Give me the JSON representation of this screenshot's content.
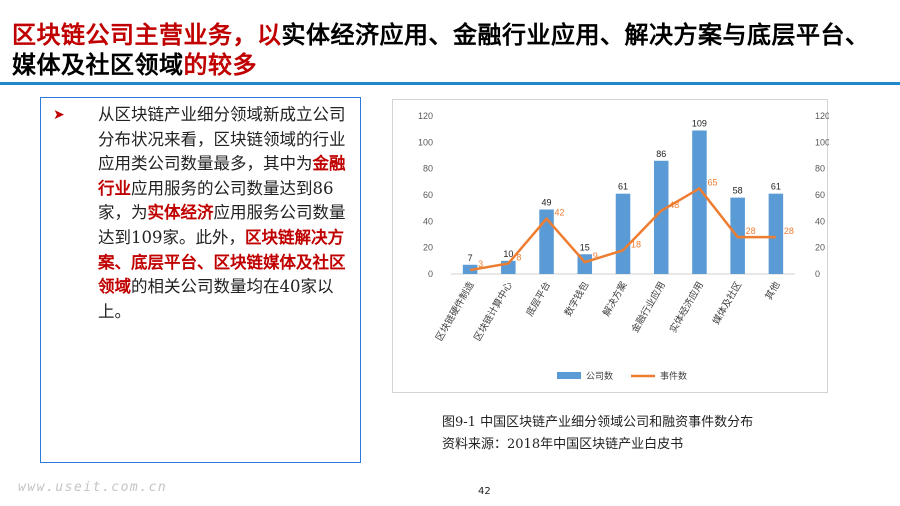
{
  "slide": {
    "title_red_1": "区块链公司主营业务，以",
    "title_black": "实体经济应用、金融行业应用、解决方案与底层平台、媒体及社区领域",
    "title_red_2": "的较多",
    "bullet_icon": "arrow-bullet-icon",
    "body": {
      "t1": "从区块链产业细分领域新成立公司分布状况来看，区块链领域的行业应用类公司数量最多，其中为",
      "h1": "金融行业",
      "t2": "应用服务的公司数量达到86家，为",
      "h2": "实体经济",
      "t3": "应用服务公司数量达到109家。此外，",
      "h3": "区块链解决方案、底层平台、区块链媒体及社区领域",
      "t4": "的相关公司数量均在40家以上。"
    },
    "caption_figure": "图9-1 中国区块链产业细分领域公司和融资事件数分布",
    "caption_source": "资料来源：2018年中国区块链产业白皮书",
    "watermark": "www.useit.com.cn",
    "page_number": "42",
    "colors": {
      "accent_red": "#c00000",
      "rule_blue": "#1e88c8",
      "bar_blue": "#5b9bd5",
      "line_orange": "#ed7d31"
    }
  },
  "chart_data": {
    "type": "bar",
    "categories": [
      "区块链硬件制造",
      "区块链计算中心",
      "底层平台",
      "数字钱包",
      "解决方案",
      "金融行业应用",
      "实体经济应用",
      "媒体及社区",
      "其他"
    ],
    "series": [
      {
        "name": "公司数",
        "type": "bar",
        "axis": "left",
        "values": [
          7,
          10,
          49,
          15,
          61,
          86,
          109,
          58,
          61
        ]
      },
      {
        "name": "事件数",
        "type": "line",
        "axis": "right",
        "values": [
          3,
          8,
          42,
          9,
          18,
          48,
          65,
          28,
          28
        ]
      }
    ],
    "ylim": [
      0,
      120
    ],
    "y2lim": [
      0,
      120
    ],
    "yticks": [
      0,
      20,
      40,
      60,
      80,
      100,
      120
    ],
    "legend": "bottom",
    "grid": false
  }
}
